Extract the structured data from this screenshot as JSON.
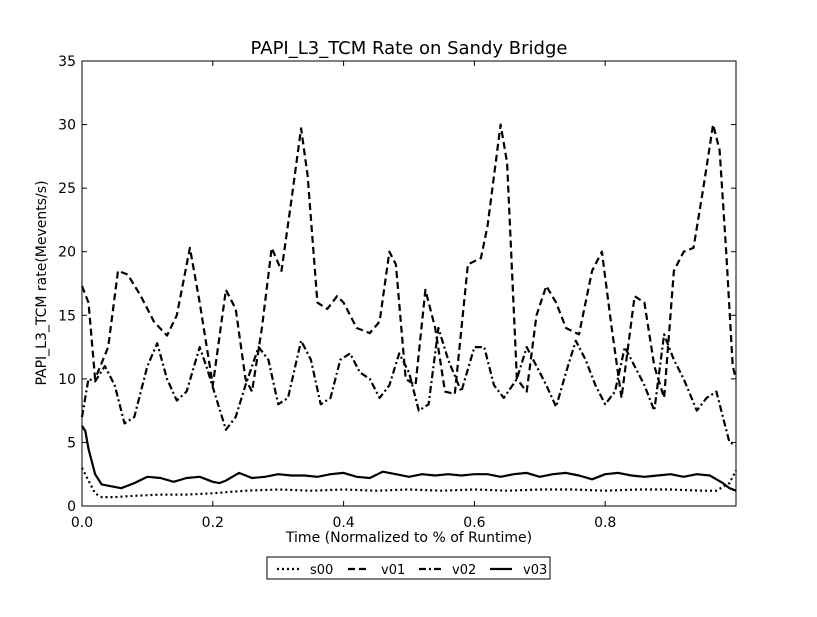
{
  "chart_data": {
    "type": "line",
    "title": "PAPI_L3_TCM Rate on Sandy Bridge",
    "xlabel": "Time (Normalized to % of Runtime)",
    "ylabel": "PAPI_L3_TCM rate(Mevents/s)",
    "xlim": [
      0.0,
      1.0
    ],
    "ylim": [
      0,
      35
    ],
    "x_ticks": [
      0.0,
      0.2,
      0.4,
      0.6,
      0.8
    ],
    "x_tick_labels": [
      "0.0",
      "0.2",
      "0.4",
      "0.6",
      "0.8"
    ],
    "y_ticks": [
      0,
      5,
      10,
      15,
      20,
      25,
      30,
      35
    ],
    "y_tick_labels": [
      "0",
      "5",
      "10",
      "15",
      "20",
      "25",
      "30",
      "35"
    ],
    "grid": false,
    "legend_position": "bottom-center",
    "series": [
      {
        "name": "s00",
        "style": "dotted",
        "color": "#000000",
        "x": [
          0.0,
          0.01,
          0.02,
          0.03,
          0.05,
          0.08,
          0.12,
          0.16,
          0.2,
          0.25,
          0.3,
          0.35,
          0.4,
          0.45,
          0.5,
          0.55,
          0.6,
          0.65,
          0.7,
          0.75,
          0.8,
          0.85,
          0.9,
          0.95,
          0.97,
          0.99,
          1.0
        ],
        "y": [
          3.0,
          2.0,
          1.0,
          0.7,
          0.7,
          0.8,
          0.9,
          0.9,
          1.0,
          1.2,
          1.3,
          1.2,
          1.3,
          1.2,
          1.3,
          1.2,
          1.3,
          1.2,
          1.3,
          1.3,
          1.2,
          1.3,
          1.3,
          1.2,
          1.2,
          1.8,
          2.8
        ]
      },
      {
        "name": "v01",
        "style": "dashed",
        "color": "#000000",
        "x": [
          0.0,
          0.01,
          0.02,
          0.04,
          0.055,
          0.07,
          0.09,
          0.11,
          0.13,
          0.145,
          0.165,
          0.18,
          0.2,
          0.22,
          0.235,
          0.25,
          0.26,
          0.275,
          0.29,
          0.305,
          0.32,
          0.335,
          0.345,
          0.36,
          0.375,
          0.39,
          0.4,
          0.42,
          0.44,
          0.455,
          0.47,
          0.48,
          0.495,
          0.51,
          0.525,
          0.54,
          0.555,
          0.57,
          0.59,
          0.61,
          0.62,
          0.64,
          0.65,
          0.665,
          0.68,
          0.695,
          0.71,
          0.725,
          0.74,
          0.76,
          0.78,
          0.795,
          0.81,
          0.825,
          0.845,
          0.86,
          0.875,
          0.89,
          0.905,
          0.92,
          0.935,
          0.95,
          0.965,
          0.975,
          0.985,
          0.995,
          1.0
        ],
        "y": [
          17.3,
          16.0,
          10.0,
          12.5,
          18.5,
          18.2,
          16.5,
          14.5,
          13.4,
          15.0,
          20.3,
          16.0,
          9.5,
          17.0,
          15.5,
          10.0,
          9.0,
          14.0,
          20.3,
          18.5,
          24.0,
          29.7,
          26.0,
          16.0,
          15.5,
          16.5,
          16.0,
          14.0,
          13.6,
          14.5,
          20.0,
          19.0,
          10.0,
          9.5,
          17.0,
          14.0,
          9.0,
          8.8,
          19.0,
          19.5,
          22.0,
          30.0,
          27.0,
          10.0,
          9.0,
          15.0,
          17.3,
          16.0,
          14.0,
          13.5,
          18.5,
          20.0,
          14.0,
          8.5,
          16.5,
          16.0,
          11.0,
          8.5,
          18.5,
          20.0,
          20.3,
          25.0,
          30.0,
          28.0,
          20.0,
          11.0,
          10.0
        ]
      },
      {
        "name": "v02",
        "style": "dashdot",
        "color": "#000000",
        "x": [
          0.0,
          0.01,
          0.02,
          0.035,
          0.05,
          0.065,
          0.08,
          0.1,
          0.115,
          0.13,
          0.145,
          0.16,
          0.18,
          0.19,
          0.205,
          0.22,
          0.235,
          0.25,
          0.27,
          0.285,
          0.3,
          0.315,
          0.335,
          0.35,
          0.365,
          0.38,
          0.395,
          0.41,
          0.425,
          0.44,
          0.455,
          0.47,
          0.485,
          0.5,
          0.515,
          0.53,
          0.545,
          0.56,
          0.58,
          0.6,
          0.615,
          0.63,
          0.645,
          0.665,
          0.68,
          0.695,
          0.71,
          0.725,
          0.74,
          0.755,
          0.77,
          0.785,
          0.8,
          0.815,
          0.83,
          0.845,
          0.86,
          0.875,
          0.89,
          0.905,
          0.92,
          0.94,
          0.955,
          0.97,
          0.98,
          0.99,
          1.0
        ],
        "y": [
          7.0,
          10.0,
          9.8,
          11.0,
          9.5,
          6.5,
          7.0,
          11.0,
          12.8,
          10.0,
          8.3,
          9.0,
          12.5,
          11.0,
          8.5,
          6.0,
          7.0,
          9.5,
          12.5,
          11.5,
          8.0,
          8.5,
          13.0,
          11.5,
          8.0,
          8.5,
          11.5,
          12.0,
          10.5,
          10.0,
          8.5,
          9.5,
          12.0,
          10.5,
          7.5,
          8.0,
          14.0,
          11.5,
          9.0,
          12.5,
          12.5,
          9.5,
          8.5,
          10.0,
          12.5,
          11.0,
          9.5,
          7.8,
          10.5,
          13.0,
          11.5,
          9.5,
          8.0,
          9.0,
          12.5,
          11.0,
          9.5,
          7.5,
          13.5,
          11.5,
          10.0,
          7.5,
          8.5,
          9.0,
          7.0,
          5.0,
          4.8
        ]
      },
      {
        "name": "v03",
        "style": "solid",
        "color": "#000000",
        "x": [
          0.0,
          0.005,
          0.01,
          0.02,
          0.03,
          0.05,
          0.06,
          0.08,
          0.1,
          0.12,
          0.14,
          0.16,
          0.18,
          0.2,
          0.21,
          0.22,
          0.24,
          0.26,
          0.28,
          0.3,
          0.32,
          0.34,
          0.36,
          0.38,
          0.4,
          0.42,
          0.44,
          0.46,
          0.48,
          0.5,
          0.52,
          0.54,
          0.56,
          0.58,
          0.6,
          0.62,
          0.64,
          0.66,
          0.68,
          0.7,
          0.72,
          0.74,
          0.76,
          0.78,
          0.8,
          0.82,
          0.84,
          0.86,
          0.88,
          0.9,
          0.92,
          0.94,
          0.96,
          0.97,
          0.98,
          0.99,
          1.0
        ],
        "y": [
          6.3,
          5.9,
          4.5,
          2.5,
          1.7,
          1.5,
          1.4,
          1.8,
          2.3,
          2.2,
          1.9,
          2.2,
          2.3,
          1.9,
          1.8,
          2.0,
          2.6,
          2.2,
          2.3,
          2.5,
          2.4,
          2.4,
          2.3,
          2.5,
          2.6,
          2.3,
          2.2,
          2.7,
          2.5,
          2.3,
          2.5,
          2.4,
          2.5,
          2.4,
          2.5,
          2.5,
          2.3,
          2.5,
          2.6,
          2.3,
          2.5,
          2.6,
          2.4,
          2.1,
          2.5,
          2.6,
          2.4,
          2.3,
          2.4,
          2.5,
          2.3,
          2.5,
          2.4,
          2.1,
          1.8,
          1.4,
          1.2
        ]
      }
    ]
  }
}
